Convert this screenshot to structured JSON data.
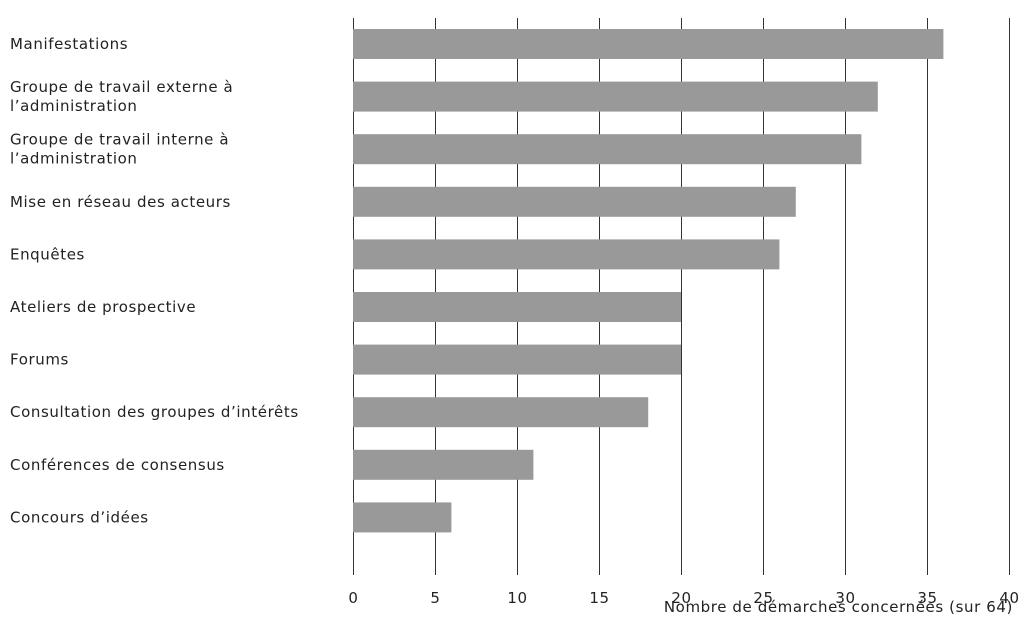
{
  "chart_data": {
    "type": "bar",
    "orientation": "horizontal",
    "categories": [
      [
        "Manifestations"
      ],
      [
        "Groupe de travail externe à",
        "l’administration"
      ],
      [
        "Groupe de travail interne à",
        "l’administration"
      ],
      [
        "Mise en réseau des acteurs"
      ],
      [
        "Enquêtes"
      ],
      [
        "Ateliers de prospective"
      ],
      [
        "Forums"
      ],
      [
        "Consultation des groupes d’intérêts"
      ],
      [
        "Conférences de consensus"
      ],
      [
        "Concours d’idées"
      ]
    ],
    "values": [
      36,
      32,
      31,
      27,
      26,
      20,
      20,
      18,
      11,
      6
    ],
    "xlabel": "Nombre de démarches concernées (sur 64)",
    "xlim": [
      0,
      40
    ],
    "xticks": [
      0,
      5,
      10,
      15,
      20,
      25,
      30,
      35,
      40
    ],
    "grid": "vertical",
    "bar_color": "#999999",
    "grid_color": "#333333",
    "text_color": "#222222"
  }
}
